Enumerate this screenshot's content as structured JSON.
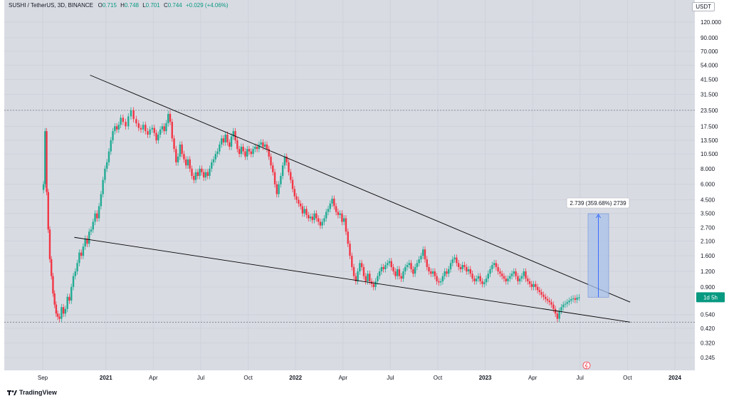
{
  "header": {
    "symbol": "SUSHI / TetherUS, 3D, BINANCE",
    "open_label": "O",
    "open": "0.715",
    "high_label": "H",
    "high": "0.748",
    "low_label": "L",
    "low": "0.701",
    "close_label": "C",
    "close": "0.744",
    "change": "+0.029 (+4.06%)"
  },
  "currency": "USDT",
  "price_tag": "1d 5h",
  "measure_label": "2.739 (359.68%) 2739",
  "footer": {
    "brand": "TradingView"
  },
  "colors": {
    "up": "#22ab94",
    "down": "#f23645",
    "background": "#d9dbe3",
    "trendline": "#000000",
    "measure_fill": "#a9c2e8"
  },
  "chart_data": {
    "type": "candlestick",
    "title": "",
    "y_scale": "log",
    "y_ticks": [
      "120.000",
      "90.000",
      "70.000",
      "54.000",
      "41.500",
      "31.500",
      "23.500",
      "17.500",
      "13.500",
      "10.500",
      "8.000",
      "6.000",
      "4.500",
      "3.500",
      "2.700",
      "2.100",
      "1.600",
      "1.200",
      "0.900",
      "0.540",
      "0.420",
      "0.320",
      "0.245"
    ],
    "x_ticks": [
      "Sep",
      "2021",
      "Apr",
      "Jul",
      "Oct",
      "2022",
      "Apr",
      "Jul",
      "Oct",
      "2023",
      "Apr",
      "Jul",
      "Oct",
      "2024"
    ],
    "ylim": [
      0.22,
      135
    ],
    "horizontal_levels": [
      23.5,
      0.47
    ],
    "trendlines": [
      {
        "from": {
          "date": "2020-12",
          "price": 45
        },
        "to": {
          "date": "2023-09",
          "price": 0.68
        }
      },
      {
        "from": {
          "date": "2020-11",
          "price": 2.25
        },
        "to": {
          "date": "2023-09",
          "price": 0.47
        }
      }
    ],
    "measure": {
      "from_price": 0.745,
      "to_price": 3.484,
      "text": "2.739 (359.68%) 2739"
    },
    "last_price": 0.744,
    "series": [
      {
        "date": "2020-09",
        "price": [
          6.0,
          16.0,
          5.2,
          2.6,
          1.5,
          1.1,
          0.8,
          0.65,
          0.55,
          0.52
        ]
      },
      {
        "date": "2020-10",
        "price": [
          0.5,
          0.62,
          0.55,
          0.6,
          0.75,
          0.7,
          0.9,
          1.1
        ]
      },
      {
        "date": "2020-11",
        "price": [
          1.2,
          1.4,
          1.7,
          1.6,
          1.9,
          2.2,
          2.0,
          2.5
        ]
      },
      {
        "date": "2020-12",
        "price": [
          2.6,
          3.0,
          3.5,
          3.2,
          4.0,
          5.0,
          6.5,
          8.0
        ]
      },
      {
        "date": "2021-01",
        "price": [
          9.0,
          11.0,
          13.5,
          16.0,
          17.5,
          16.5,
          18.0,
          20.5
        ]
      },
      {
        "date": "2021-02",
        "price": [
          19.0,
          17.5,
          21.0,
          23.5,
          20.0,
          18.5
        ]
      },
      {
        "date": "2021-03",
        "price": [
          17.0,
          16.5,
          18.0,
          16.0,
          15.0,
          16.5,
          17.0
        ]
      },
      {
        "date": "2021-04",
        "price": [
          15.5,
          13.5,
          15.0,
          16.5,
          17.5,
          16.0,
          18.5,
          22.0
        ]
      },
      {
        "date": "2021-05",
        "price": [
          19.0,
          14.0,
          11.5,
          9.0,
          10.0,
          12.5,
          10.5,
          9.5
        ]
      },
      {
        "date": "2021-06",
        "price": [
          8.5,
          9.5,
          8.0,
          7.0,
          6.5,
          7.5,
          7.0,
          8.0
        ]
      },
      {
        "date": "2021-07",
        "price": [
          7.5,
          6.8,
          7.5,
          7.0,
          8.0,
          9.0,
          9.5,
          10.5
        ]
      },
      {
        "date": "2021-08",
        "price": [
          11.0,
          12.5,
          14.0,
          13.0,
          15.0,
          13.0,
          12.0,
          14.5
        ]
      },
      {
        "date": "2021-09",
        "price": [
          16.0,
          13.5,
          11.5,
          10.5,
          12.0,
          11.0,
          10.0,
          11.5
        ]
      },
      {
        "date": "2021-10",
        "price": [
          11.0,
          10.5,
          11.5,
          12.0,
          11.5,
          12.5,
          13.0,
          12.0
        ]
      },
      {
        "date": "2021-11",
        "price": [
          12.5,
          11.5,
          10.0,
          8.5,
          7.5,
          6.0,
          5.0,
          6.0
        ]
      },
      {
        "date": "2021-12",
        "price": [
          7.0,
          8.5,
          10.0,
          9.0,
          7.5,
          6.5,
          5.5,
          4.8
        ]
      },
      {
        "date": "2022-01",
        "price": [
          4.5,
          4.2,
          4.0,
          3.5,
          3.8,
          3.4,
          3.2,
          3.3
        ]
      },
      {
        "date": "2022-02",
        "price": [
          3.1,
          3.5,
          3.2,
          3.0,
          2.8,
          3.0,
          3.2,
          3.6
        ]
      },
      {
        "date": "2022-03",
        "price": [
          3.8,
          4.2,
          4.6,
          4.0,
          3.6,
          3.4,
          3.5,
          3.0
        ]
      },
      {
        "date": "2022-04",
        "price": [
          3.2,
          2.5,
          2.0,
          1.6,
          1.3,
          1.1,
          1.0,
          1.2
        ]
      },
      {
        "date": "2022-05",
        "price": [
          1.4,
          1.3,
          1.1,
          1.0,
          1.15,
          1.0,
          0.95,
          0.9
        ]
      },
      {
        "date": "2022-06",
        "price": [
          1.0,
          1.1,
          1.2,
          1.3,
          1.25,
          1.35,
          1.4,
          1.45
        ]
      },
      {
        "date": "2022-07",
        "price": [
          1.3,
          1.2,
          1.1,
          1.25,
          1.1,
          1.05,
          1.2,
          1.3
        ]
      },
      {
        "date": "2022-08",
        "price": [
          1.35,
          1.4,
          1.25,
          1.15,
          1.3,
          1.4,
          1.5,
          1.6
        ]
      },
      {
        "date": "2022-09",
        "price": [
          1.8,
          1.5,
          1.3,
          1.2,
          1.15,
          1.2,
          1.1,
          1.0
        ]
      },
      {
        "date": "2022-10",
        "price": [
          0.98,
          1.0,
          1.1,
          1.2,
          1.15,
          1.25,
          1.4,
          1.5
        ]
      },
      {
        "date": "2022-11",
        "price": [
          1.55,
          1.4,
          1.3,
          1.25,
          1.35,
          1.3,
          1.2,
          1.25
        ]
      },
      {
        "date": "2022-12",
        "price": [
          1.15,
          1.05,
          1.0,
          1.05,
          1.1,
          1.0,
          0.95,
          0.98
        ]
      },
      {
        "date": "2023-01",
        "price": [
          1.05,
          1.15,
          1.25,
          1.35,
          1.4,
          1.3,
          1.2,
          1.15
        ]
      },
      {
        "date": "2023-02",
        "price": [
          1.1,
          1.05,
          1.0,
          1.05,
          1.1,
          1.15,
          1.2,
          1.1
        ]
      },
      {
        "date": "2023-03",
        "price": [
          1.0,
          1.05,
          1.1,
          1.2,
          1.05,
          1.0,
          0.95,
          0.9
        ]
      },
      {
        "date": "2023-04",
        "price": [
          0.95,
          0.9,
          0.85,
          0.82,
          0.78,
          0.75,
          0.72,
          0.7
        ]
      },
      {
        "date": "2023-05",
        "price": [
          0.68,
          0.65,
          0.6,
          0.55,
          0.5,
          0.58,
          0.62,
          0.65
        ]
      },
      {
        "date": "2023-06",
        "price": [
          0.66,
          0.68,
          0.7,
          0.72,
          0.73,
          0.71,
          0.74,
          0.744
        ]
      }
    ]
  }
}
